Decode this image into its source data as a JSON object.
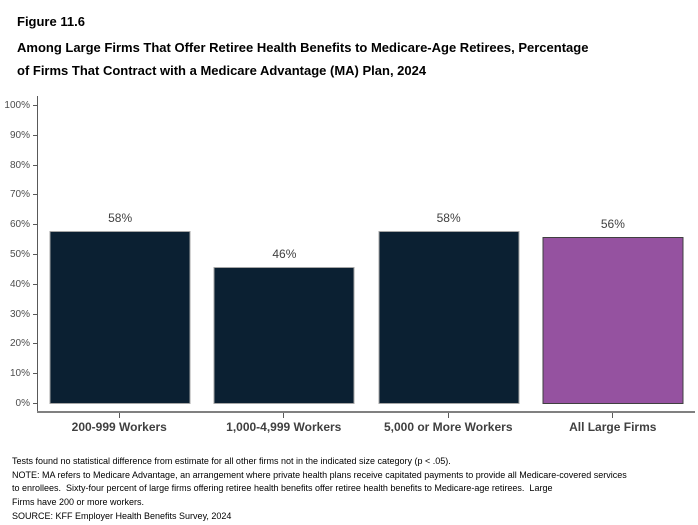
{
  "figure": {
    "number": "Figure 11.6",
    "title_lines": [
      "Among Large Firms That Offer Retiree Health Benefits to Medicare-Age Retirees, Percentage",
      "of Firms That Contract with a Medicare Advantage (MA) Plan, 2024"
    ]
  },
  "chart_data": {
    "type": "bar",
    "title": "Among Large Firms That Offer Retiree Health Benefits to Medicare-Age Retirees, Percentage of Firms That Contract with a Medicare Advantage (MA) Plan, 2024",
    "categories": [
      "200-999 Workers",
      "1,000-4,999 Workers",
      "5,000 or More Workers",
      "All Large Firms"
    ],
    "values": [
      58,
      46,
      58,
      56
    ],
    "value_labels": [
      "58%",
      "46%",
      "58%",
      "56%"
    ],
    "bar_colors": [
      "#0b2032",
      "#0b2032",
      "#0b2032",
      "#9552a0"
    ],
    "bar_border_colors": [
      "#a6a6a6",
      "#a6a6a6",
      "#a6a6a6",
      "#404040"
    ],
    "xlabel": "",
    "ylabel": "",
    "ylim": [
      0,
      100
    ],
    "y_tick_labels": [
      "0%",
      "10%",
      "20%",
      "30%",
      "40%",
      "50%",
      "60%",
      "70%",
      "80%",
      "90%",
      "100%"
    ],
    "grid": false,
    "legend": "none",
    "colors": {
      "axis_line": "#595959",
      "bottom_axis_line": "#808080",
      "y_tick_label": "#4d4d4d",
      "category_label": "#404040",
      "value_label": "#404040"
    }
  },
  "footnotes": {
    "lines": [
      "Tests found no statistical difference from estimate for all other firms not in the indicated size category (p < .05).",
      "NOTE: MA refers to Medicare Advantage, an arrangement where private health plans receive capitated payments to provide all Medicare-covered services",
      "to enrollees.  Sixty-four percent of large firms offering retiree health benefits offer retiree health benefits to Medicare-age retirees.  Large",
      "Firms have 200 or more workers.",
      "SOURCE: KFF Employer Health Benefits Survey, 2024"
    ]
  }
}
